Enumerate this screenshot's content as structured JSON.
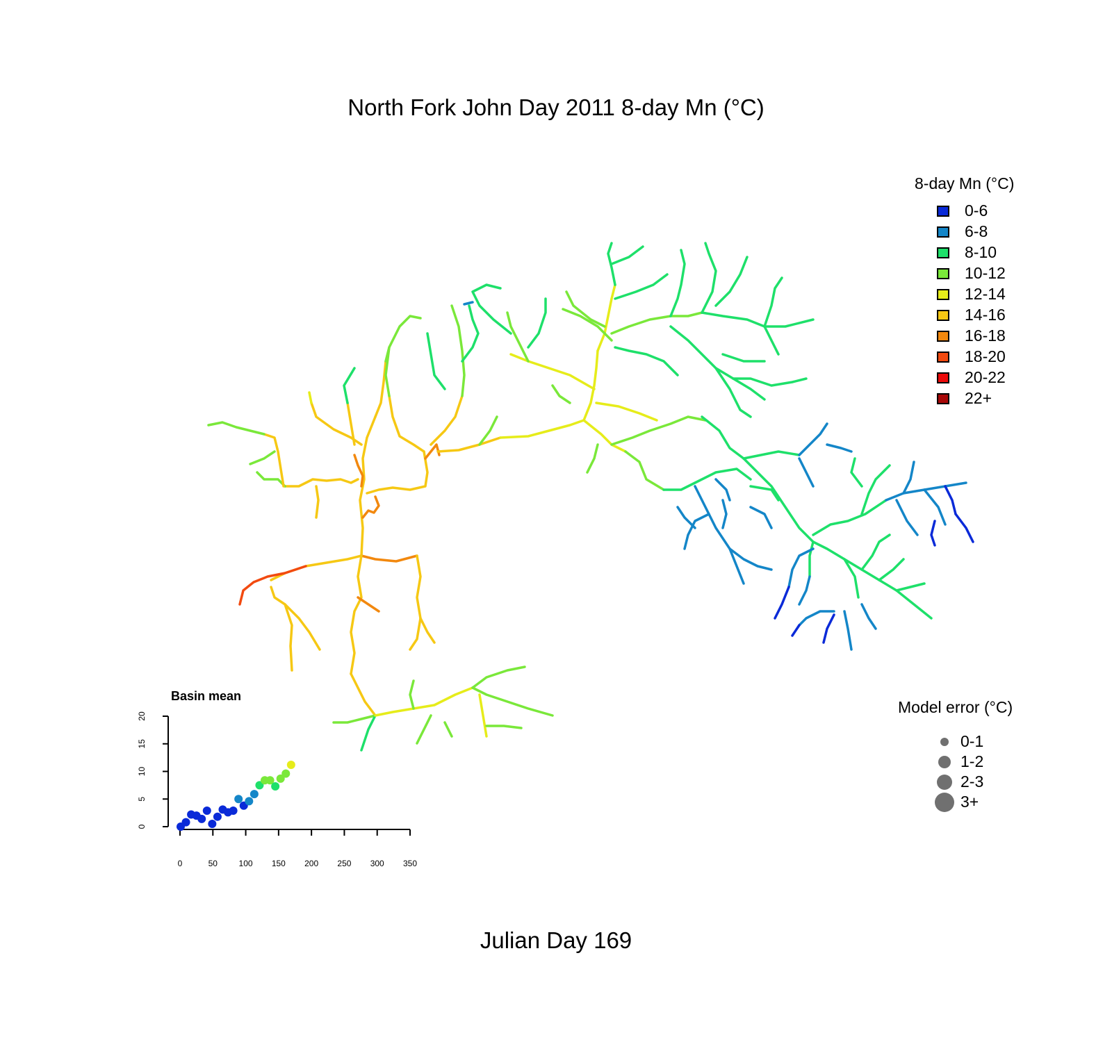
{
  "title": "North Fork John Day 2011 8-day Mn (°C)",
  "subtitle": "Julian Day 169",
  "temp_legend": {
    "title": "8-day Mn (°C)",
    "items": [
      {
        "label": "0-6",
        "color": "#0a2ad8"
      },
      {
        "label": "6-8",
        "color": "#1486c8"
      },
      {
        "label": "8-10",
        "color": "#1ee06a"
      },
      {
        "label": "10-12",
        "color": "#7ae83a"
      },
      {
        "label": "12-14",
        "color": "#e6ec1a"
      },
      {
        "label": "14-16",
        "color": "#f6c814"
      },
      {
        "label": "16-18",
        "color": "#f2880e"
      },
      {
        "label": "18-20",
        "color": "#f24a10"
      },
      {
        "label": "20-22",
        "color": "#ec0a0a"
      },
      {
        "label": "22+",
        "color": "#a80808"
      }
    ]
  },
  "error_legend": {
    "title": "Model error (°C)",
    "items": [
      {
        "label": "0-1"
      },
      {
        "label": "1-2"
      },
      {
        "label": "2-3"
      },
      {
        "label": "3+"
      }
    ]
  },
  "chart_data": {
    "type": "scatter",
    "title": "Basin mean",
    "xlabel": "",
    "ylabel": "",
    "xlim": [
      0,
      350
    ],
    "ylim": [
      0,
      20
    ],
    "xticks": [
      "0",
      "50",
      "100",
      "150",
      "200",
      "250",
      "300",
      "350"
    ],
    "yticks": [
      "0",
      "5",
      "10",
      "15",
      "20"
    ],
    "points": [
      {
        "x": 1,
        "y": 0.0,
        "color": "#0a2ad8"
      },
      {
        "x": 9,
        "y": 0.8,
        "color": "#0a2ad8"
      },
      {
        "x": 17,
        "y": 2.2,
        "color": "#0a2ad8"
      },
      {
        "x": 25,
        "y": 2.0,
        "color": "#0a2ad8"
      },
      {
        "x": 33,
        "y": 1.4,
        "color": "#0a2ad8"
      },
      {
        "x": 41,
        "y": 2.9,
        "color": "#0a2ad8"
      },
      {
        "x": 49,
        "y": 0.5,
        "color": "#0a2ad8"
      },
      {
        "x": 57,
        "y": 1.8,
        "color": "#0a2ad8"
      },
      {
        "x": 65,
        "y": 3.1,
        "color": "#0a2ad8"
      },
      {
        "x": 73,
        "y": 2.6,
        "color": "#0a2ad8"
      },
      {
        "x": 81,
        "y": 2.9,
        "color": "#0a2ad8"
      },
      {
        "x": 89,
        "y": 5.0,
        "color": "#1486c8"
      },
      {
        "x": 97,
        "y": 3.8,
        "color": "#0a2ad8"
      },
      {
        "x": 105,
        "y": 4.6,
        "color": "#1486c8"
      },
      {
        "x": 113,
        "y": 5.9,
        "color": "#1486c8"
      },
      {
        "x": 121,
        "y": 7.5,
        "color": "#1ee06a"
      },
      {
        "x": 129,
        "y": 8.4,
        "color": "#7ae83a"
      },
      {
        "x": 137,
        "y": 8.4,
        "color": "#7ae83a"
      },
      {
        "x": 145,
        "y": 7.3,
        "color": "#1ee06a"
      },
      {
        "x": 153,
        "y": 8.7,
        "color": "#7ae83a"
      },
      {
        "x": 161,
        "y": 9.6,
        "color": "#7ae83a"
      },
      {
        "x": 169,
        "y": 11.2,
        "color": "#e6ec1a"
      }
    ]
  }
}
